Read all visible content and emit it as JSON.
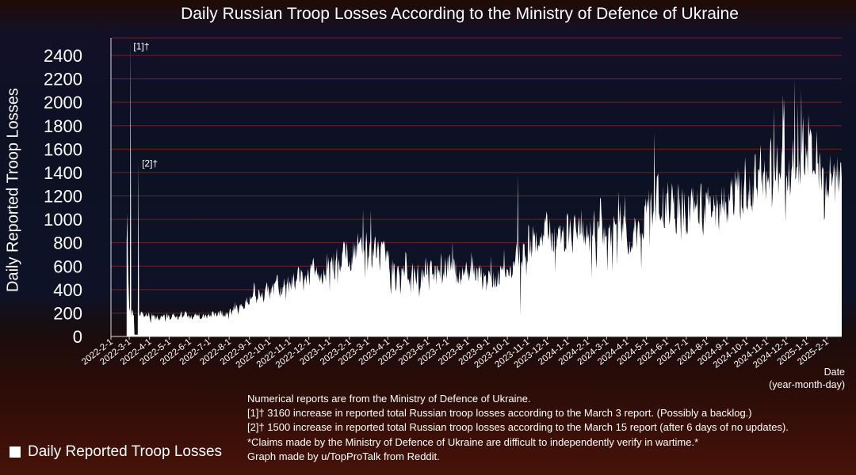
{
  "title": "Daily Russian Troop Losses According to the Ministry of Defence of Ukraine",
  "axis": {
    "y_label": "Daily Reported Troop Losses",
    "x_label_line1": "Date",
    "x_label_line2": "(year-month-day)"
  },
  "legend": {
    "label": "Daily Reported Troop Losses"
  },
  "footnotes": {
    "lines": [
      "Numerical reports are from the Ministry of Defence of Ukraine.",
      "[1]† 3160 increase in reported total Russian troop losses according to the March 3 report. (Possibly a backlog.)",
      "[2]† 1500 increase in reported total Russian troop losses according to the March 15 report (after 6 days of no updates).",
      "*Claims made by the Ministry of Defence of Ukraine are difficult to independently verify in wartime.*",
      "Graph made by u/TopProTalk from Reddit."
    ]
  },
  "colors": {
    "text": "#ffffff",
    "grid": "#6e2222",
    "series_fill": "#ffffff",
    "axis_line": "#d9d9d9",
    "background_middle": "#0d1226",
    "background_bottom": "#471309"
  },
  "chart_data": {
    "type": "bar",
    "title": "Daily Russian Troop Losses According to the Ministry of Defence of Ukraine",
    "ylabel": "Daily Reported Troop Losses",
    "xlabel": "Date (year-month-day)",
    "series_name": "Daily Reported Troop Losses",
    "ylim": [
      0,
      2400
    ],
    "ytick_step": 200,
    "y_tick_labels": [
      "0",
      "200",
      "400",
      "600",
      "800",
      "1000",
      "1200",
      "1400",
      "1600",
      "1800",
      "2000",
      "2200",
      "2400"
    ],
    "grid": "horizontal dark-red lines every 200",
    "legend_position": "bottom-left",
    "x_axis_start": "2022-2-1",
    "data_start": "2022-2-25",
    "data_end": "2025-2-24",
    "x_tick_labels": [
      "2022-2-1",
      "2022-3-1",
      "2022-4-1",
      "2022-5-1",
      "2022-6-1",
      "2022-7-1",
      "2022-8-1",
      "2022-9-1",
      "2022-10-1",
      "2022-11-1",
      "2022-12-1",
      "2023-1-1",
      "2023-2-1",
      "2023-3-1",
      "2023-4-1",
      "2023-5-1",
      "2023-6-1",
      "2023-7-1",
      "2023-8-1",
      "2023-9-1",
      "2023-10-1",
      "2023-11-1",
      "2023-12-1",
      "2024-1-1",
      "2024-2-1",
      "2024-3-1",
      "2024-4-1",
      "2024-5-1",
      "2024-6-1",
      "2024-7-1",
      "2024-8-1",
      "2024-9-1",
      "2024-10-1",
      "2024-11-1",
      "2024-12-1",
      "2025-1-1",
      "2025-2-1"
    ],
    "annotations": [
      {
        "label": "[1]†",
        "date": "2022-3-5",
        "value": 2450,
        "note": "3160 increase reported March 3; spike clipped at top of axis"
      },
      {
        "label": "[2]†",
        "date": "2022-3-18",
        "value": 1450,
        "note": "1500 increase reported March 15 after 6 days of no updates"
      }
    ],
    "monthly_mean_daily_losses": [
      [
        "2022-3",
        200
      ],
      [
        "2022-4",
        160
      ],
      [
        "2022-5",
        180
      ],
      [
        "2022-6",
        170
      ],
      [
        "2022-7",
        190
      ],
      [
        "2022-8",
        240
      ],
      [
        "2022-9",
        360
      ],
      [
        "2022-10",
        430
      ],
      [
        "2022-11",
        510
      ],
      [
        "2022-12",
        560
      ],
      [
        "2023-1",
        670
      ],
      [
        "2023-2",
        780
      ],
      [
        "2023-3",
        730
      ],
      [
        "2023-4",
        560
      ],
      [
        "2023-5",
        540
      ],
      [
        "2023-6",
        610
      ],
      [
        "2023-7",
        590
      ],
      [
        "2023-8",
        560
      ],
      [
        "2023-9",
        490
      ],
      [
        "2023-10",
        660
      ],
      [
        "2023-11",
        880
      ],
      [
        "2023-12",
        850
      ],
      [
        "2024-1",
        840
      ],
      [
        "2024-2",
        930
      ],
      [
        "2024-3",
        900
      ],
      [
        "2024-4",
        890
      ],
      [
        "2024-5",
        1160
      ],
      [
        "2024-6",
        1120
      ],
      [
        "2024-7",
        1080
      ],
      [
        "2024-8",
        1130
      ],
      [
        "2024-9",
        1240
      ],
      [
        "2024-10",
        1330
      ],
      [
        "2024-11",
        1480
      ],
      [
        "2024-12",
        1570
      ],
      [
        "2025-1",
        1480
      ],
      [
        "2025-2",
        1310
      ]
    ],
    "notable_daily_values": [
      [
        "2022-2-25",
        800
      ],
      [
        "2022-2-26",
        1050
      ],
      [
        "2022-2-27",
        620
      ],
      [
        "2022-2-28",
        410
      ],
      [
        "2022-3-3",
        3160
      ],
      [
        "2022-3-9",
        12
      ],
      [
        "2022-3-10",
        12
      ],
      [
        "2022-3-11",
        12
      ],
      [
        "2022-3-12",
        12
      ],
      [
        "2022-3-13",
        12
      ],
      [
        "2022-3-14",
        12
      ],
      [
        "2022-3-15",
        1500
      ],
      [
        "2023-2-22",
        1090
      ],
      [
        "2023-3-6",
        1080
      ],
      [
        "2023-10-17",
        1380
      ],
      [
        "2023-10-21",
        180
      ],
      [
        "2024-5-13",
        1740
      ],
      [
        "2024-11-12",
        1950
      ],
      [
        "2024-11-28",
        2030
      ],
      [
        "2024-12-14",
        2200
      ],
      [
        "2024-12-19",
        2000
      ],
      [
        "2025-1-4",
        1900
      ]
    ]
  }
}
